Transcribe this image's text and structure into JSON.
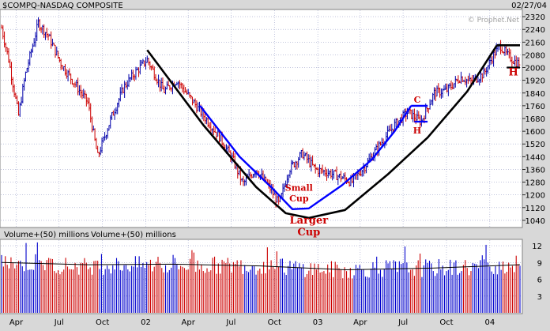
{
  "chart_data": [
    {
      "type": "ohlc",
      "title": "$COMPQ-NASDAQ COMPOSITE",
      "date_label": "02/27/04",
      "watermark": "© Prophet.Net",
      "ylim": [
        1000,
        2360
      ],
      "y_ticks": [
        2320,
        2240,
        2160,
        2080,
        2000,
        1920,
        1840,
        1760,
        1680,
        1600,
        1520,
        1440,
        1360,
        1280,
        1200,
        1120,
        1040
      ],
      "x_period": [
        "2001-03-01",
        "2004-03-05"
      ],
      "x_ticks": [
        {
          "label": "Apr",
          "date": "2001-04-01"
        },
        {
          "label": "Jul",
          "date": "2001-07-01"
        },
        {
          "label": "Oct",
          "date": "2001-10-01"
        },
        {
          "label": "02",
          "date": "2002-01-01"
        },
        {
          "label": "Apr",
          "date": "2002-04-01"
        },
        {
          "label": "Jul",
          "date": "2002-07-01"
        },
        {
          "label": "Oct",
          "date": "2002-10-01"
        },
        {
          "label": "03",
          "date": "2003-01-01"
        },
        {
          "label": "Apr",
          "date": "2003-04-01"
        },
        {
          "label": "Jul",
          "date": "2003-07-01"
        },
        {
          "label": "Oct",
          "date": "2003-10-01"
        },
        {
          "label": "04",
          "date": "2004-01-01"
        }
      ],
      "price_path": [
        [
          "2001-03-01",
          2250
        ],
        [
          "2001-03-16",
          2050
        ],
        [
          "2001-04-06",
          1700
        ],
        [
          "2001-04-20",
          1950
        ],
        [
          "2001-05-18",
          2280
        ],
        [
          "2001-06-08",
          2200
        ],
        [
          "2001-07-06",
          2020
        ],
        [
          "2001-08-03",
          1900
        ],
        [
          "2001-08-31",
          1780
        ],
        [
          "2001-09-21",
          1440
        ],
        [
          "2001-10-19",
          1680
        ],
        [
          "2001-11-16",
          1880
        ],
        [
          "2001-12-07",
          1960
        ],
        [
          "2002-01-04",
          2050
        ],
        [
          "2002-02-08",
          1850
        ],
        [
          "2002-03-08",
          1920
        ],
        [
          "2002-04-05",
          1810
        ],
        [
          "2002-05-03",
          1700
        ],
        [
          "2002-06-07",
          1560
        ],
        [
          "2002-07-05",
          1420
        ],
        [
          "2002-07-26",
          1270
        ],
        [
          "2002-08-23",
          1360
        ],
        [
          "2002-09-20",
          1250
        ],
        [
          "2002-10-11",
          1140
        ],
        [
          "2002-11-01",
          1360
        ],
        [
          "2002-11-29",
          1460
        ],
        [
          "2002-12-27",
          1360
        ],
        [
          "2003-01-24",
          1340
        ],
        [
          "2003-02-21",
          1310
        ],
        [
          "2003-03-14",
          1280
        ],
        [
          "2003-04-11",
          1380
        ],
        [
          "2003-05-09",
          1500
        ],
        [
          "2003-06-13",
          1640
        ],
        [
          "2003-07-11",
          1720
        ],
        [
          "2003-08-08",
          1660
        ],
        [
          "2003-09-05",
          1840
        ],
        [
          "2003-10-03",
          1860
        ],
        [
          "2003-10-31",
          1940
        ],
        [
          "2003-11-21",
          1910
        ],
        [
          "2003-12-19",
          1960
        ],
        [
          "2004-01-09",
          2080
        ],
        [
          "2004-01-23",
          2140
        ],
        [
          "2004-02-06",
          2080
        ],
        [
          "2004-02-27",
          2030
        ]
      ],
      "annotations": {
        "larger_cup": {
          "label": [
            "Larger",
            "Cup"
          ],
          "color": "#000000",
          "points": [
            [
              "2002-01-04",
              2110
            ],
            [
              "2002-05-03",
              1640
            ],
            [
              "2002-08-23",
              1250
            ],
            [
              "2002-10-25",
              1085
            ],
            [
              "2002-12-13",
              1055
            ],
            [
              "2003-02-28",
              1105
            ],
            [
              "2003-05-30",
              1330
            ],
            [
              "2003-08-22",
              1560
            ],
            [
              "2003-11-14",
              1850
            ],
            [
              "2004-01-16",
              2140
            ]
          ]
        },
        "larger_handle_rim": {
          "color": "#000000",
          "points": [
            [
              "2004-01-16",
              2140
            ],
            [
              "2004-03-05",
              2140
            ]
          ]
        },
        "larger_handle_bottom": {
          "color": "#000000",
          "points": [
            [
              "2004-02-06",
              2000
            ],
            [
              "2004-03-05",
              2000
            ]
          ]
        },
        "handle_label": {
          "text": "H",
          "color": "#cc0000"
        },
        "small_cup": {
          "label": [
            "Small",
            "Cup"
          ],
          "color": "#0000ff",
          "points": [
            [
              "2002-04-26",
              1760
            ],
            [
              "2002-07-19",
              1440
            ],
            [
              "2002-09-27",
              1240
            ],
            [
              "2002-11-08",
              1110
            ],
            [
              "2002-12-13",
              1115
            ],
            [
              "2003-02-21",
              1260
            ],
            [
              "2003-04-25",
              1420
            ],
            [
              "2003-06-13",
              1600
            ],
            [
              "2003-07-18",
              1760
            ]
          ]
        },
        "small_rim": {
          "color": "#0000ff",
          "points": [
            [
              "2003-07-18",
              1760
            ],
            [
              "2003-08-22",
              1760
            ]
          ]
        },
        "small_handle_bottom": {
          "color": "#0000ff",
          "points": [
            [
              "2003-07-25",
              1660
            ],
            [
              "2003-08-22",
              1660
            ]
          ]
        },
        "small_c_label": {
          "text": "C",
          "color": "#cc0000"
        },
        "small_h_label": {
          "text": "H",
          "color": "#cc0000"
        }
      }
    },
    {
      "type": "bar",
      "title": "Volume+(50) millions",
      "title2": "Volume+(50) millions",
      "ylim": [
        0,
        13
      ],
      "y_ticks": [
        3,
        6,
        9,
        12
      ],
      "colors": {
        "up": "#0000cc",
        "down": "#cc0000",
        "average": "#000000"
      },
      "volume_path": [
        [
          "2001-03-01",
          9.0
        ],
        [
          "2001-06-01",
          8.6
        ],
        [
          "2001-09-01",
          8.3
        ],
        [
          "2001-12-01",
          8.6
        ],
        [
          "2002-03-01",
          8.4
        ],
        [
          "2002-06-01",
          8.5
        ],
        [
          "2002-09-01",
          8.4
        ],
        [
          "2002-12-01",
          8.0
        ],
        [
          "2003-03-01",
          7.6
        ],
        [
          "2003-06-01",
          8.0
        ],
        [
          "2003-09-01",
          8.0
        ],
        [
          "2003-12-01",
          8.2
        ],
        [
          "2004-03-05",
          8.7
        ]
      ],
      "volume_average": [
        [
          "2001-03-01",
          9.0
        ],
        [
          "2001-09-01",
          8.6
        ],
        [
          "2002-03-01",
          8.7
        ],
        [
          "2002-09-01",
          8.4
        ],
        [
          "2003-03-01",
          7.7
        ],
        [
          "2003-09-01",
          8.0
        ],
        [
          "2004-03-05",
          8.6
        ]
      ]
    }
  ]
}
